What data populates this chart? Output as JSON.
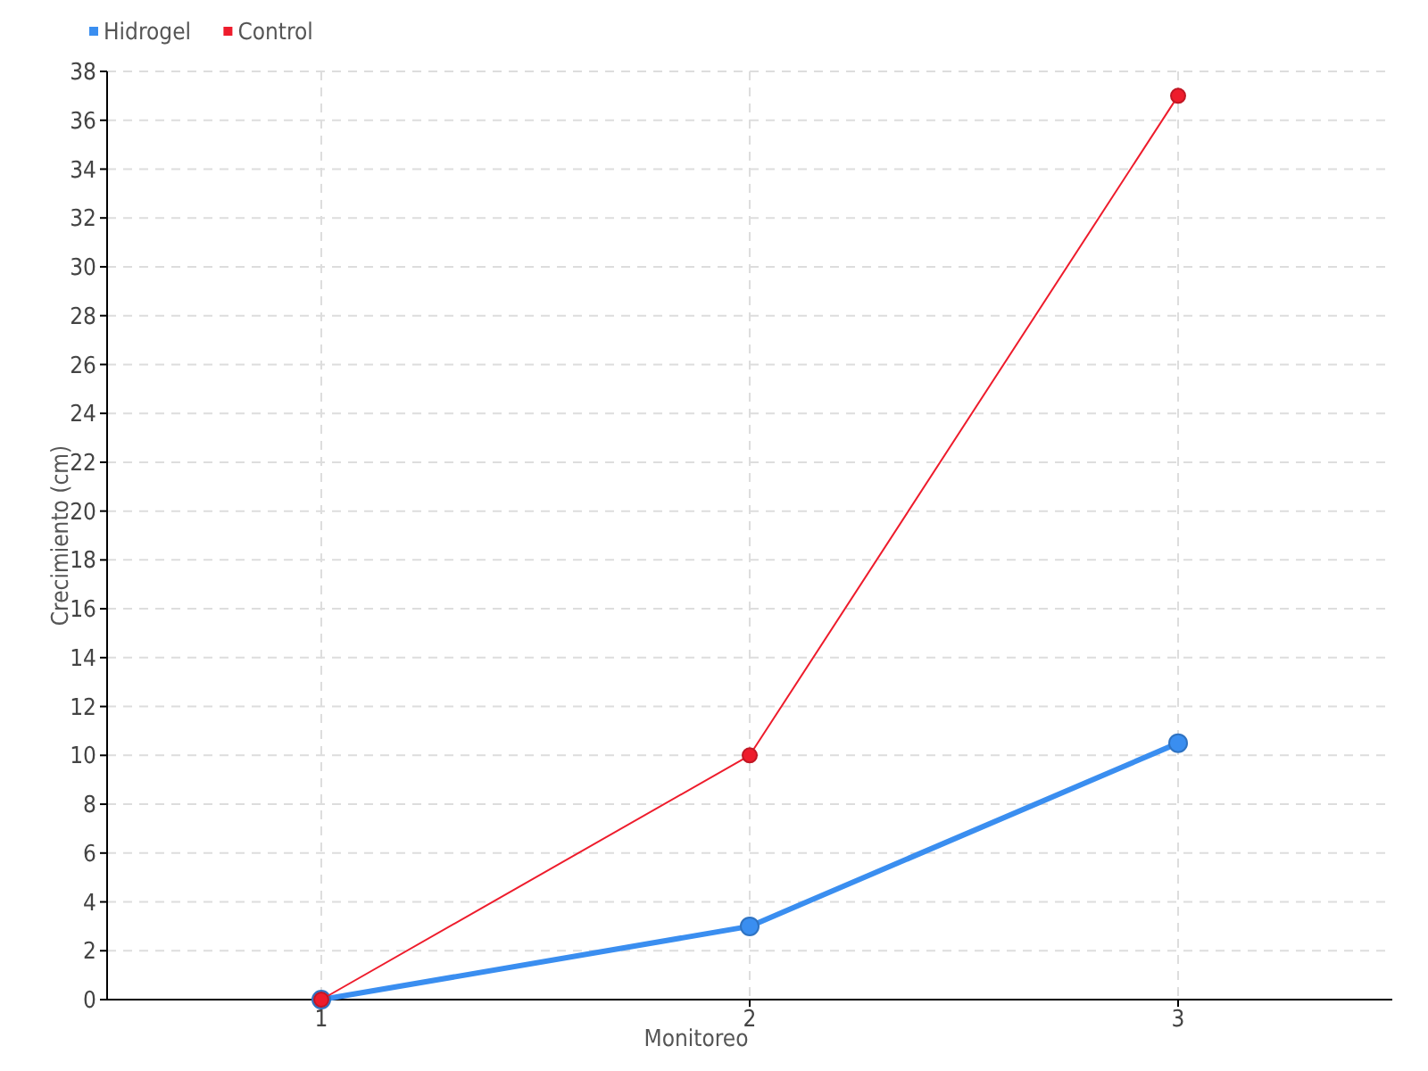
{
  "chart_data": {
    "type": "line",
    "xlabel": "Monitoreo",
    "ylabel": "Crecimiento (cm)",
    "x": [
      1,
      2,
      3
    ],
    "xlim": [
      0.5,
      3.5
    ],
    "xticks": [
      1,
      2,
      3
    ],
    "ylim": [
      0,
      38
    ],
    "yticks": [
      0,
      2,
      4,
      6,
      8,
      10,
      12,
      14,
      16,
      18,
      20,
      22,
      24,
      26,
      28,
      30,
      32,
      34,
      36,
      38
    ],
    "grid": true,
    "legend": "top left",
    "marker": "circle",
    "line_style": "solid",
    "series": [
      {
        "name": "Hidrogel",
        "color": "#3a8ef0",
        "values": [
          0,
          3,
          10.5
        ]
      },
      {
        "name": "Control",
        "color": "#ee1c2c",
        "values": [
          0,
          10,
          37
        ]
      }
    ]
  }
}
